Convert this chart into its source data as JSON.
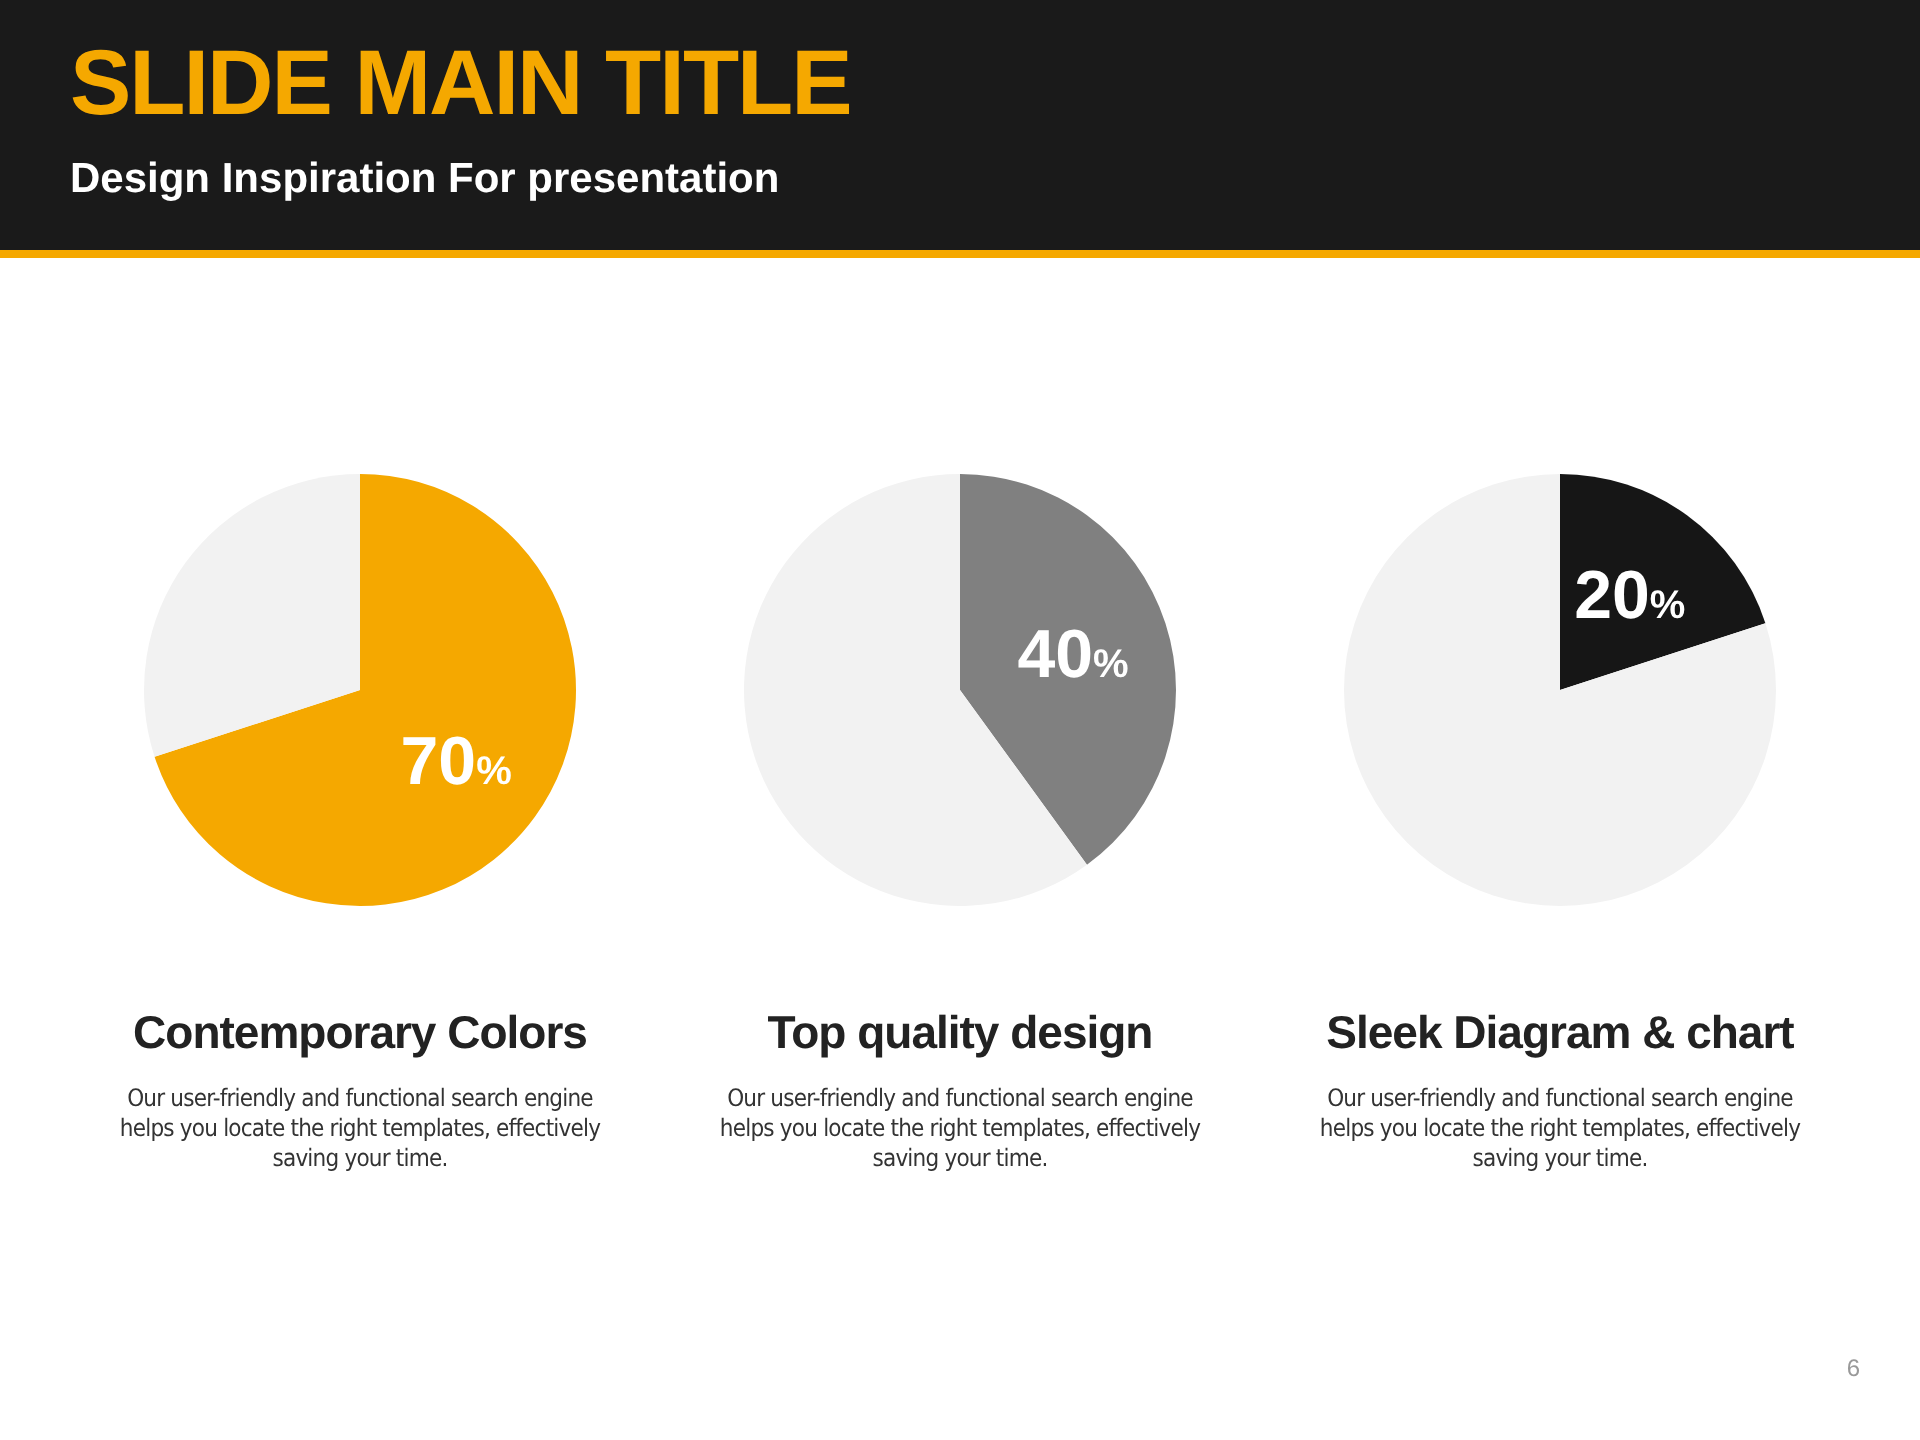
{
  "chart_data": [
    {
      "type": "other",
      "title": "SLIDE MAIN TITLE",
      "subtitle": "Design Inspiration For presentation",
      "annotations": [
        "6"
      ]
    },
    {
      "type": "pie",
      "title": "Contemporary Colors",
      "categories": [
        null,
        null
      ],
      "values": [
        70,
        30
      ],
      "colors": [
        "#f5a800",
        "#f2f2f2"
      ],
      "value_labels": [
        "70%",
        null
      ],
      "annotations": [
        "Our user-friendly and functional search engine helps you locate the right templates, effectively saving your time."
      ]
    },
    {
      "type": "pie",
      "title": "Top quality design",
      "categories": [
        null,
        null
      ],
      "values": [
        40,
        60
      ],
      "colors": [
        "#808080",
        "#f2f2f2"
      ],
      "value_labels": [
        "40%",
        null
      ],
      "annotations": [
        "Our user-friendly and functional search engine helps you locate the right templates, effectively saving your time."
      ]
    },
    {
      "type": "pie",
      "title": "Sleek Diagram & chart",
      "categories": [
        null,
        null
      ],
      "values": [
        20,
        80
      ],
      "colors": [
        "#161616",
        "#f2f2f2"
      ],
      "value_labels": [
        "20%",
        null
      ],
      "annotations": [
        "Our user-friendly and functional search engine helps you locate the right templates, effectively saving your time."
      ]
    }
  ]
}
